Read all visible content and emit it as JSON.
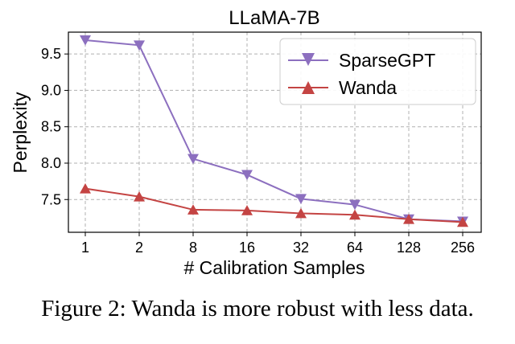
{
  "chart_data": {
    "type": "line",
    "title": "LLaMA-7B",
    "xlabel": "# Calibration Samples",
    "ylabel": "Perplexity",
    "categories": [
      "1",
      "2",
      "8",
      "16",
      "32",
      "64",
      "128",
      "256"
    ],
    "ylim": [
      7.05,
      9.8
    ],
    "yticks": [
      "7.5",
      "8.0",
      "8.5",
      "9.0",
      "9.5"
    ],
    "grid": true,
    "legend_position": "top-right",
    "series": [
      {
        "name": "SparseGPT",
        "color": "#8c6fbf",
        "marker": "triangle-down",
        "values": [
          9.69,
          9.62,
          8.06,
          7.84,
          7.51,
          7.43,
          7.23,
          7.2
        ]
      },
      {
        "name": "Wanda",
        "color": "#c44443",
        "marker": "triangle-up",
        "values": [
          7.65,
          7.54,
          7.36,
          7.35,
          7.31,
          7.29,
          7.23,
          7.19
        ]
      }
    ]
  },
  "caption": "Figure 2: Wanda is more robust with less data."
}
